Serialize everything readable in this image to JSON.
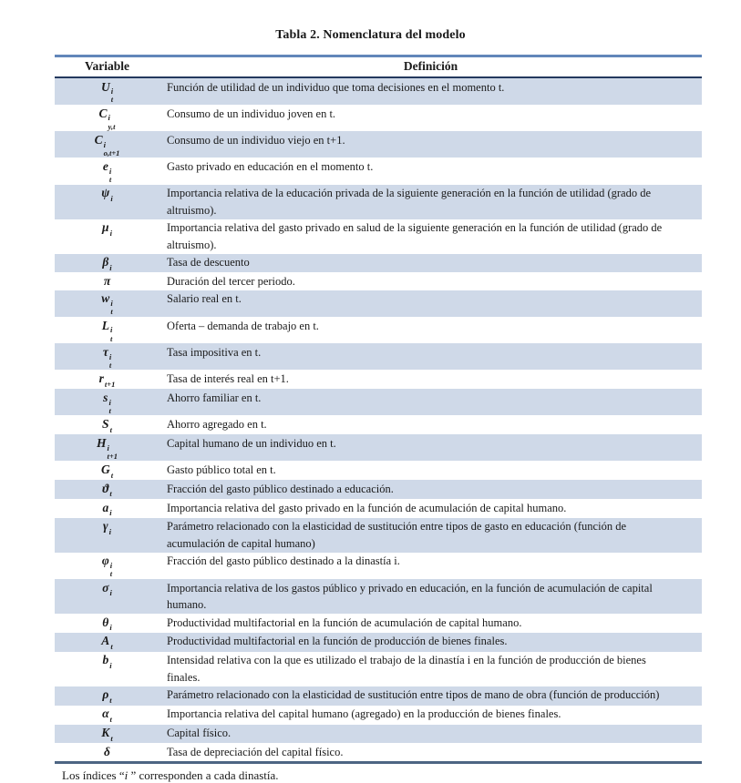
{
  "page": {
    "title": "Tabla 2. Nomenclatura del modelo"
  },
  "table": {
    "headers": {
      "variable": "Variable",
      "definition": "Definición"
    },
    "rows": [
      {
        "symbol": {
          "base": "U",
          "sup": "i",
          "sub": "t"
        },
        "definition": "Función de utilidad de un individuo que toma decisiones en el momento t."
      },
      {
        "symbol": {
          "base": "C",
          "sup": "i",
          "sub": "y,t"
        },
        "definition": "Consumo de un individuo joven en t."
      },
      {
        "symbol": {
          "base": "C",
          "sup": "i",
          "sub": "o,t+1"
        },
        "definition": "Consumo de un individuo viejo en t+1."
      },
      {
        "symbol": {
          "base": "e",
          "sup": "i",
          "sub": "t"
        },
        "definition": "Gasto privado en educación en el momento t."
      },
      {
        "symbol": {
          "base": "ψ",
          "sup": "",
          "sub": "i"
        },
        "definition": "Importancia relativa de la educación privada de la siguiente generación en la función de utilidad (grado de altruismo)."
      },
      {
        "symbol": {
          "base": "μ",
          "sup": "",
          "sub": "i"
        },
        "definition": "Importancia relativa del gasto privado en salud de la siguiente generación en la función de utilidad (grado de altruismo)."
      },
      {
        "symbol": {
          "base": "β",
          "sup": "",
          "sub": "i"
        },
        "definition": "Tasa de descuento"
      },
      {
        "symbol": {
          "base": "π",
          "sup": "",
          "sub": ""
        },
        "definition": "Duración del tercer periodo."
      },
      {
        "symbol": {
          "base": "w",
          "sup": "i",
          "sub": "t"
        },
        "definition": "Salario real en t."
      },
      {
        "symbol": {
          "base": "L",
          "sup": "i",
          "sub": "t"
        },
        "definition": "Oferta – demanda de trabajo en t."
      },
      {
        "symbol": {
          "base": "τ",
          "sup": "i",
          "sub": "t"
        },
        "definition": "Tasa impositiva en t."
      },
      {
        "symbol": {
          "base": "r",
          "sup": "",
          "sub": "t+1"
        },
        "definition": "Tasa de interés real en t+1."
      },
      {
        "symbol": {
          "base": "s",
          "sup": "i",
          "sub": "t"
        },
        "definition": "Ahorro familiar en t."
      },
      {
        "symbol": {
          "base": "S",
          "sup": "",
          "sub": "t"
        },
        "definition": "Ahorro agregado en t."
      },
      {
        "symbol": {
          "base": "H",
          "sup": "i",
          "sub": "t+1"
        },
        "definition": "Capital humano de un individuo en t."
      },
      {
        "symbol": {
          "base": "G",
          "sup": "",
          "sub": "t"
        },
        "definition": "Gasto público total en t."
      },
      {
        "symbol": {
          "base": "ϑ",
          "sup": "",
          "sub": "t"
        },
        "definition": "Fracción del gasto público destinado a educación."
      },
      {
        "symbol": {
          "base": "a",
          "sup": "",
          "sub": "i"
        },
        "definition": "Importancia relativa del gasto privado en la función de acumulación de capital humano."
      },
      {
        "symbol": {
          "base": "γ",
          "sup": "",
          "sub": "i"
        },
        "definition": "Parámetro relacionado con la elasticidad de sustitución entre tipos de gasto en educación (función de acumulación de capital humano)"
      },
      {
        "symbol": {
          "base": "φ",
          "sup": "i",
          "sub": "t"
        },
        "definition": "Fracción del gasto público destinado a la dinastía i."
      },
      {
        "symbol": {
          "base": "σ",
          "sup": "",
          "sub": "i"
        },
        "definition": "Importancia relativa de los gastos público y privado en educación, en la función de acumulación de capital humano."
      },
      {
        "symbol": {
          "base": "θ",
          "sup": "",
          "sub": "i"
        },
        "definition": "Productividad multifactorial en la función de acumulación de capital humano."
      },
      {
        "symbol": {
          "base": "A",
          "sup": "",
          "sub": "t"
        },
        "definition": "Productividad multifactorial en la función de producción de bienes finales."
      },
      {
        "symbol": {
          "base": "b",
          "sup": "",
          "sub": "i"
        },
        "definition": "Intensidad relativa con la que es utilizado el trabajo de la dinastía i en la función de producción de bienes finales."
      },
      {
        "symbol": {
          "base": "ρ",
          "sup": "",
          "sub": "t"
        },
        "definition": "Parámetro relacionado con la elasticidad de sustitución entre tipos de mano de obra (función de producción)"
      },
      {
        "symbol": {
          "base": "α",
          "sup": "",
          "sub": "t"
        },
        "definition": "Importancia relativa del capital humano (agregado) en la producción de bienes finales."
      },
      {
        "symbol": {
          "base": "K",
          "sup": "",
          "sub": "t"
        },
        "definition": "Capital físico."
      },
      {
        "symbol": {
          "base": "δ",
          "sup": "",
          "sub": ""
        },
        "definition": "Tasa de depreciación del capital físico."
      }
    ]
  },
  "footnote": {
    "prefix": "Los índices “",
    "italic": "i",
    "suffix": " ” corresponden a cada dinastía."
  },
  "colors": {
    "row_shade": "#cfd9e8",
    "border_top": "#6286ba",
    "header_rule": "#24395e",
    "border_bottom": "#4d6583",
    "text": "#1a1a1a"
  }
}
